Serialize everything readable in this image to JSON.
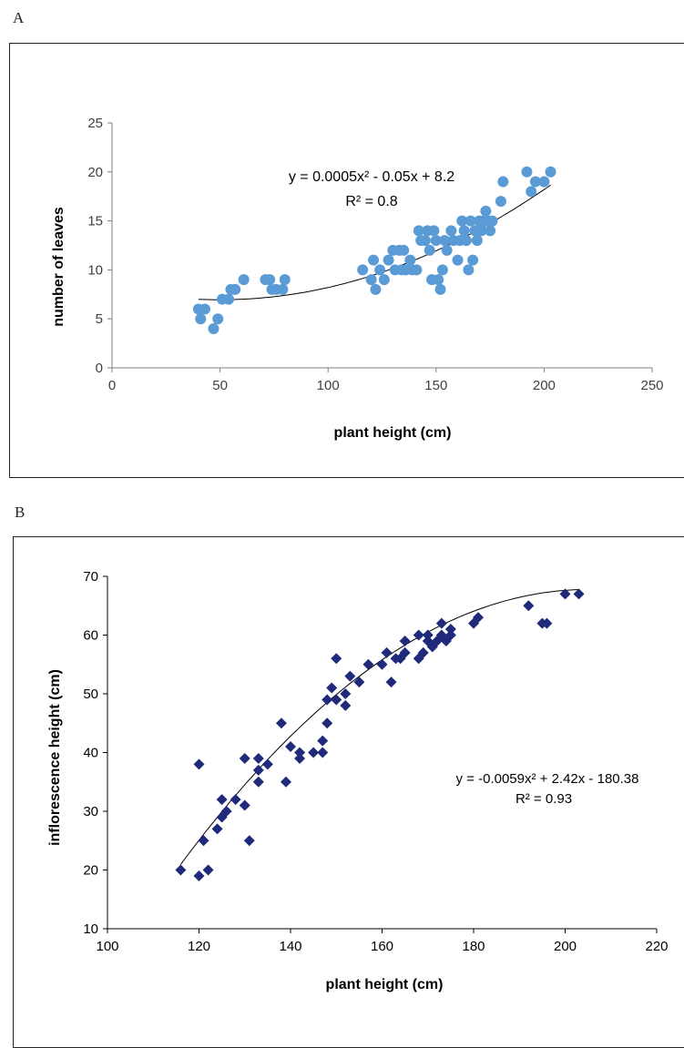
{
  "panel_a_letter": "A",
  "panel_b_letter": "B",
  "chart_data": [
    {
      "type": "scatter",
      "xlabel": "plant height (cm)",
      "ylabel": "number of leaves",
      "xlim": [
        0,
        250
      ],
      "ylim": [
        0,
        25
      ],
      "xticks": [
        "0",
        "50",
        "100",
        "150",
        "200",
        "250"
      ],
      "yticks": [
        "0",
        "5",
        "10",
        "15",
        "20",
        "25"
      ],
      "equation": "y = 0.0005x² - 0.05x + 8.2",
      "r_squared": "R² = 0.8",
      "trend_coefficients": [
        0.0005,
        -0.05,
        8.2
      ],
      "trend_range": [
        40,
        203
      ],
      "marker": "circle",
      "marker_color": "#5b9bd5",
      "points": [
        [
          40,
          6
        ],
        [
          41,
          5
        ],
        [
          43,
          6
        ],
        [
          47,
          4
        ],
        [
          49,
          5
        ],
        [
          51,
          7
        ],
        [
          54,
          7
        ],
        [
          55,
          8
        ],
        [
          57,
          8
        ],
        [
          61,
          9
        ],
        [
          71,
          9
        ],
        [
          73,
          9
        ],
        [
          74,
          8
        ],
        [
          76,
          8
        ],
        [
          79,
          8
        ],
        [
          80,
          9
        ],
        [
          116,
          10
        ],
        [
          120,
          9
        ],
        [
          121,
          11
        ],
        [
          122,
          8
        ],
        [
          124,
          10
        ],
        [
          126,
          9
        ],
        [
          128,
          11
        ],
        [
          130,
          12
        ],
        [
          131,
          10
        ],
        [
          133,
          12
        ],
        [
          134,
          10
        ],
        [
          135,
          12
        ],
        [
          136,
          10
        ],
        [
          138,
          11
        ],
        [
          139,
          10
        ],
        [
          141,
          10
        ],
        [
          142,
          14
        ],
        [
          143,
          13
        ],
        [
          145,
          13
        ],
        [
          146,
          14
        ],
        [
          147,
          12
        ],
        [
          148,
          9
        ],
        [
          149,
          14
        ],
        [
          150,
          13
        ],
        [
          151,
          9
        ],
        [
          152,
          8
        ],
        [
          153,
          10
        ],
        [
          154,
          13
        ],
        [
          155,
          12
        ],
        [
          157,
          14
        ],
        [
          158,
          13
        ],
        [
          160,
          11
        ],
        [
          161,
          13
        ],
        [
          162,
          15
        ],
        [
          163,
          14
        ],
        [
          164,
          13
        ],
        [
          165,
          10
        ],
        [
          166,
          15
        ],
        [
          167,
          11
        ],
        [
          168,
          14
        ],
        [
          169,
          13
        ],
        [
          170,
          15
        ],
        [
          171,
          14
        ],
        [
          172,
          15
        ],
        [
          173,
          16
        ],
        [
          174,
          15
        ],
        [
          175,
          14
        ],
        [
          176,
          15
        ],
        [
          180,
          17
        ],
        [
          181,
          19
        ],
        [
          192,
          20
        ],
        [
          194,
          18
        ],
        [
          196,
          19
        ],
        [
          200,
          19
        ],
        [
          203,
          20
        ]
      ]
    },
    {
      "type": "scatter",
      "xlabel": "plant height (cm)",
      "ylabel": "inflorescence  height (cm)",
      "xlim": [
        100,
        220
      ],
      "ylim": [
        10,
        70
      ],
      "xticks": [
        "100",
        "120",
        "140",
        "160",
        "180",
        "200",
        "220"
      ],
      "yticks": [
        "10",
        "20",
        "30",
        "40",
        "50",
        "60",
        "70"
      ],
      "equation": "y = -0.0059x²  + 2.42x  - 180.38",
      "r_squared": "R² = 0.93",
      "trend_coefficients": [
        -0.0059,
        2.42,
        -180.38
      ],
      "trend_range": [
        116,
        203
      ],
      "marker": "diamond",
      "marker_color": "#1f2a7a",
      "points": [
        [
          116,
          20
        ],
        [
          120,
          19
        ],
        [
          120,
          38
        ],
        [
          121,
          25
        ],
        [
          122,
          20
        ],
        [
          124,
          27
        ],
        [
          125,
          29
        ],
        [
          125,
          32
        ],
        [
          126,
          30
        ],
        [
          128,
          32
        ],
        [
          130,
          39
        ],
        [
          130,
          31
        ],
        [
          131,
          25
        ],
        [
          133,
          35
        ],
        [
          133,
          37
        ],
        [
          133,
          39
        ],
        [
          135,
          38
        ],
        [
          138,
          45
        ],
        [
          139,
          35
        ],
        [
          140,
          41
        ],
        [
          142,
          40
        ],
        [
          142,
          39
        ],
        [
          145,
          40
        ],
        [
          147,
          40
        ],
        [
          147,
          42
        ],
        [
          148,
          45
        ],
        [
          148,
          49
        ],
        [
          149,
          51
        ],
        [
          150,
          49
        ],
        [
          150,
          56
        ],
        [
          152,
          50
        ],
        [
          152,
          48
        ],
        [
          153,
          53
        ],
        [
          155,
          52
        ],
        [
          157,
          55
        ],
        [
          160,
          55
        ],
        [
          161,
          57
        ],
        [
          162,
          52
        ],
        [
          163,
          56
        ],
        [
          164,
          56
        ],
        [
          165,
          57
        ],
        [
          165,
          59
        ],
        [
          168,
          56
        ],
        [
          168,
          60
        ],
        [
          169,
          57
        ],
        [
          170,
          59
        ],
        [
          170,
          60
        ],
        [
          171,
          58
        ],
        [
          172,
          59
        ],
        [
          173,
          60
        ],
        [
          173,
          62
        ],
        [
          174,
          59
        ],
        [
          175,
          60
        ],
        [
          175,
          61
        ],
        [
          180,
          62
        ],
        [
          181,
          63
        ],
        [
          192,
          65
        ],
        [
          195,
          62
        ],
        [
          196,
          62
        ],
        [
          200,
          67
        ],
        [
          203,
          67
        ]
      ]
    }
  ]
}
